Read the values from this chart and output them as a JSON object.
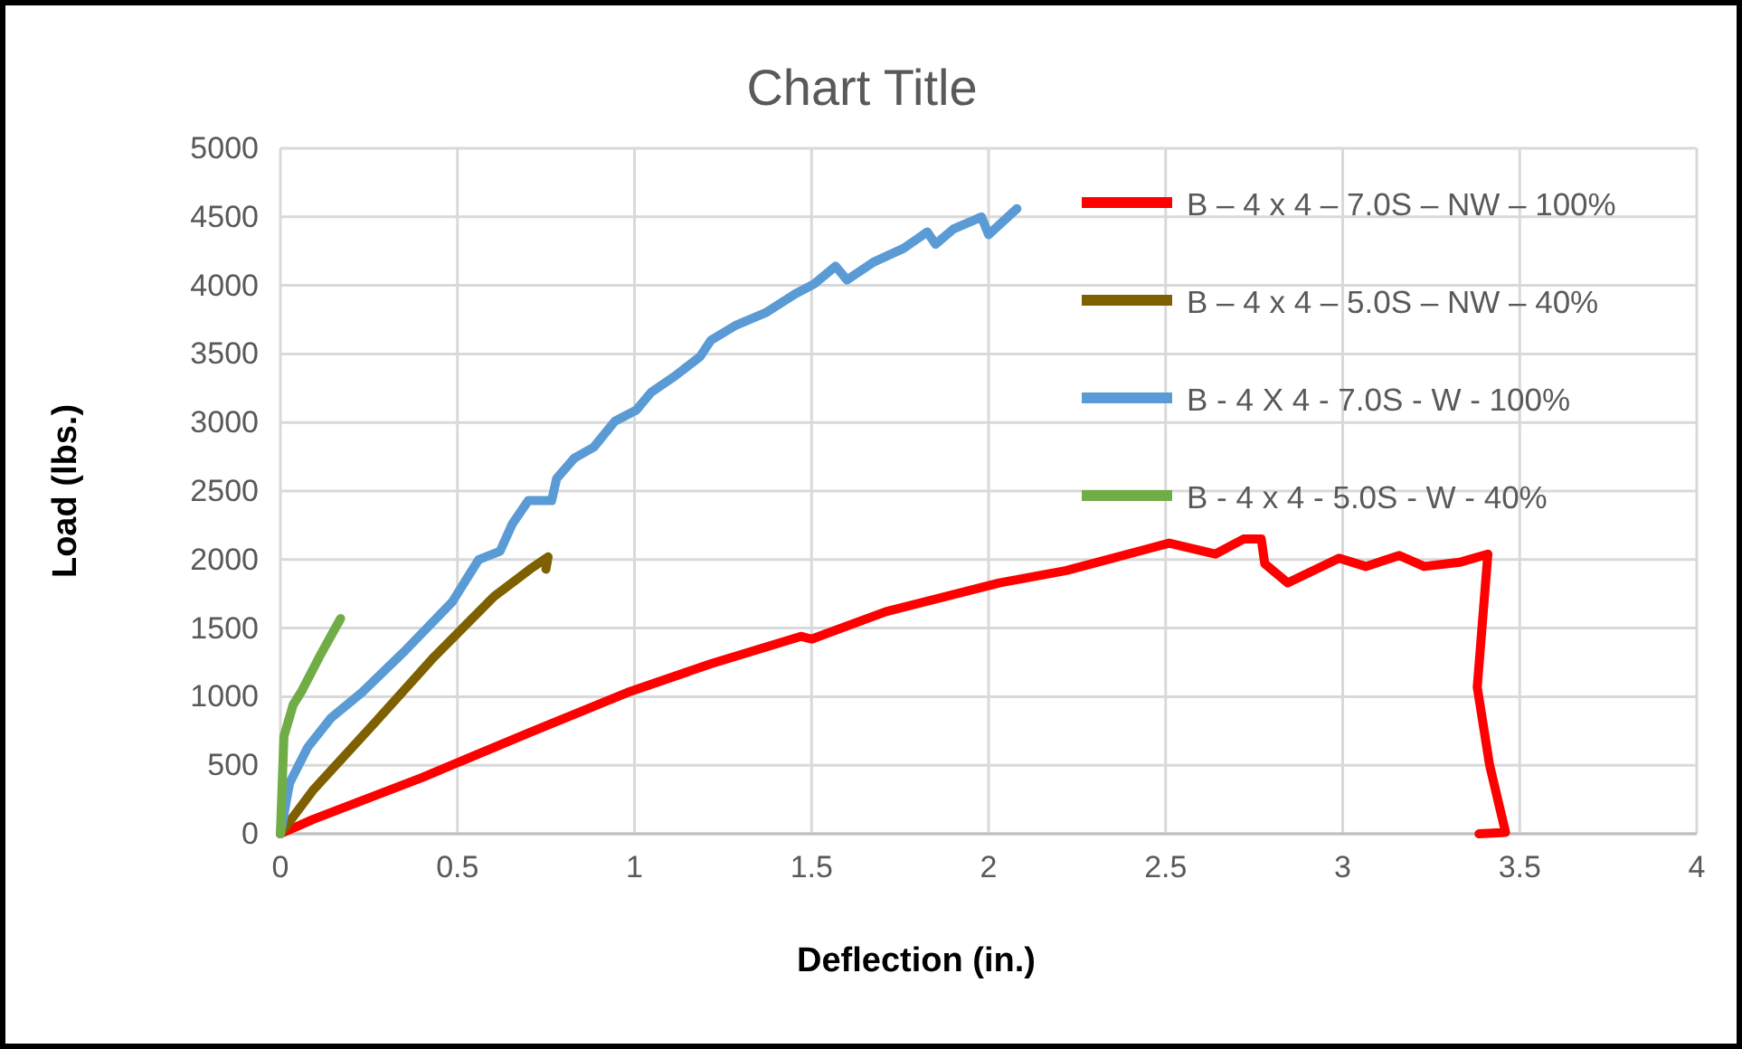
{
  "chart_data": {
    "type": "line",
    "title": "Chart Title",
    "xlabel": "Deflection (in.)",
    "ylabel": "Load (lbs.)",
    "xlim": [
      0,
      4
    ],
    "xticks": [
      0,
      0.5,
      1,
      1.5,
      2,
      2.5,
      3,
      3.5,
      4
    ],
    "ylim": [
      0,
      5000
    ],
    "yticks": [
      0,
      500,
      1000,
      1500,
      2000,
      2500,
      3000,
      3500,
      4000,
      4500,
      5000
    ],
    "grid": true,
    "legend": "top right",
    "marker": "none",
    "line_style": "solid",
    "series": [
      {
        "name": "B – 4 x 4 – 7.0S – NW – 100%",
        "color": "#ff0000",
        "x": [
          0,
          0.092,
          0.4,
          0.705,
          0.98,
          1.216,
          1.47,
          1.5,
          1.71,
          2.03,
          2.22,
          2.51,
          2.64,
          2.72,
          2.77,
          2.78,
          2.845,
          2.99,
          3.065,
          3.16,
          3.23,
          3.33,
          3.41,
          3.38,
          3.415,
          3.46,
          3.385
        ],
        "values": [
          0,
          105,
          410,
          740,
          1030,
          1240,
          1440,
          1420,
          1620,
          1830,
          1920,
          2120,
          2040,
          2150,
          2150,
          1970,
          1830,
          2010,
          1950,
          2030,
          1950,
          1980,
          2040,
          1070,
          500,
          10,
          0
        ]
      },
      {
        "name": "B – 4 x 4 – 5.0S – NW – 40%",
        "color": "#7f6000",
        "x": [
          0,
          0.092,
          0.265,
          0.434,
          0.603,
          0.705,
          0.756,
          0.75
        ],
        "values": [
          0,
          317,
          805,
          1290,
          1730,
          1930,
          2020,
          1930
        ]
      },
      {
        "name": "B - 4 X 4 - 7.0S - W - 100%",
        "color": "#5b9bd5",
        "x": [
          0,
          0.026,
          0.077,
          0.143,
          0.23,
          0.35,
          0.485,
          0.56,
          0.62,
          0.655,
          0.7,
          0.766,
          0.78,
          0.83,
          0.885,
          0.945,
          1.005,
          1.047,
          1.115,
          1.185,
          1.216,
          1.287,
          1.37,
          1.455,
          1.507,
          1.568,
          1.6,
          1.675,
          1.76,
          1.827,
          1.85,
          1.9,
          1.98,
          2.0,
          2.08
        ],
        "values": [
          0,
          370,
          630,
          845,
          1030,
          1330,
          1690,
          2000,
          2060,
          2260,
          2430,
          2430,
          2590,
          2740,
          2820,
          3010,
          3090,
          3220,
          3340,
          3480,
          3600,
          3710,
          3800,
          3940,
          4010,
          4140,
          4040,
          4170,
          4270,
          4390,
          4300,
          4410,
          4500,
          4370,
          4560
        ]
      },
      {
        "name": "B - 4 x 4 - 5.0S - W - 40%",
        "color": "#70ad47",
        "x": [
          0,
          0.01,
          0.036,
          0.06,
          0.11,
          0.17
        ],
        "values": [
          0,
          710,
          940,
          1040,
          1290,
          1570
        ]
      }
    ]
  }
}
